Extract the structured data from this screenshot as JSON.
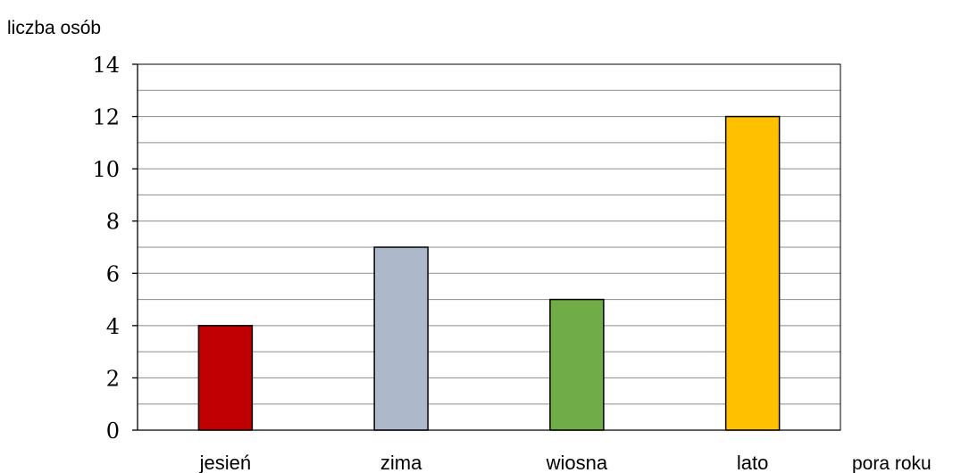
{
  "chart_data": {
    "type": "bar",
    "xlabel": "pora roku",
    "ylabel": "liczba osób",
    "categories": [
      "jesień",
      "zima",
      "wiosna",
      "lato"
    ],
    "values": [
      4,
      7,
      5,
      12
    ],
    "colors": [
      "#c00000",
      "#adb9ca",
      "#70ad47",
      "#ffc000"
    ],
    "ylim": [
      0,
      14
    ],
    "y_ticks": [
      0,
      2,
      4,
      6,
      8,
      10,
      12,
      14
    ],
    "y_tick_labels": [
      "0",
      "2",
      "4",
      "6",
      "8",
      "10",
      "12",
      "14"
    ],
    "minor_gridline_step": 1,
    "grid": true,
    "legend": "none"
  }
}
